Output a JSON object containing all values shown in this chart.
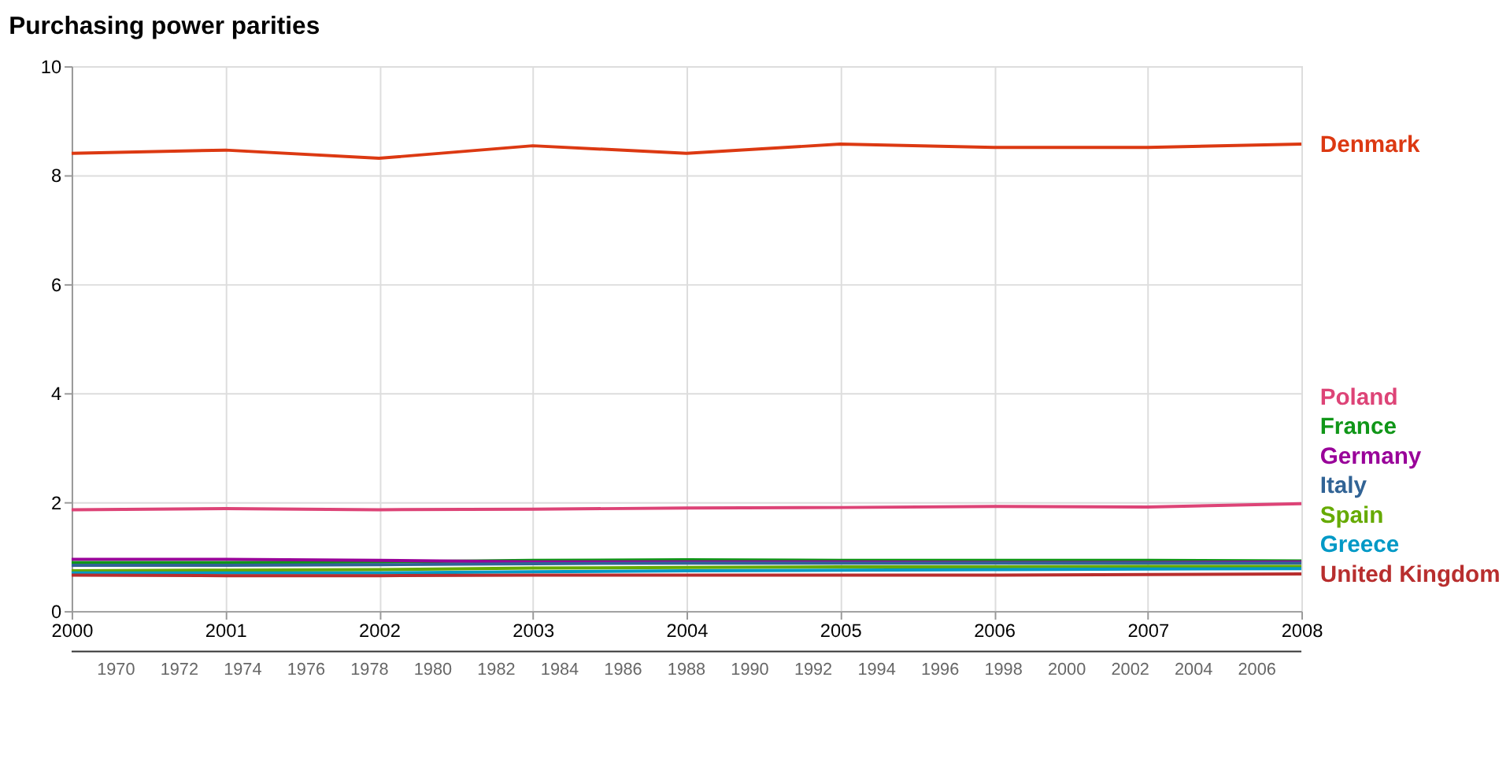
{
  "chart_data": [
    {
      "type": "line",
      "title": "Purchasing power parities",
      "x": [
        2000,
        2001,
        2002,
        2003,
        2004,
        2005,
        2006,
        2007,
        2008
      ],
      "series": [
        {
          "name": "Denmark",
          "color": "#dc3912",
          "values": [
            8.4,
            8.46,
            8.31,
            8.54,
            8.4,
            8.57,
            8.51,
            8.51,
            8.57
          ]
        },
        {
          "name": "Poland",
          "color": "#dd4477",
          "values": [
            1.86,
            1.88,
            1.86,
            1.87,
            1.89,
            1.9,
            1.92,
            1.91,
            1.97
          ]
        },
        {
          "name": "France",
          "color": "#109618",
          "values": [
            0.89,
            0.89,
            0.9,
            0.93,
            0.94,
            0.93,
            0.93,
            0.93,
            0.92
          ]
        },
        {
          "name": "Germany",
          "color": "#990099",
          "values": [
            0.95,
            0.95,
            0.93,
            0.9,
            0.9,
            0.9,
            0.89,
            0.89,
            0.9
          ]
        },
        {
          "name": "Italy",
          "color": "#316395",
          "values": [
            0.84,
            0.84,
            0.85,
            0.87,
            0.88,
            0.88,
            0.88,
            0.88,
            0.88
          ]
        },
        {
          "name": "Spain",
          "color": "#66aa00",
          "values": [
            0.74,
            0.75,
            0.76,
            0.79,
            0.8,
            0.81,
            0.81,
            0.82,
            0.82
          ]
        },
        {
          "name": "Greece",
          "color": "#0099c6",
          "values": [
            0.7,
            0.7,
            0.7,
            0.72,
            0.74,
            0.75,
            0.76,
            0.77,
            0.78
          ]
        },
        {
          "name": "United Kingdom",
          "color": "#b82e2e",
          "values": [
            0.66,
            0.65,
            0.65,
            0.66,
            0.66,
            0.66,
            0.66,
            0.67,
            0.68
          ]
        }
      ],
      "xlim": [
        2000,
        2008
      ],
      "xticks": [
        2000,
        2001,
        2002,
        2003,
        2004,
        2005,
        2006,
        2007,
        2008
      ],
      "ylim": [
        0,
        10
      ],
      "yticks": [
        0,
        2,
        4,
        6,
        8,
        10
      ],
      "grid": true,
      "legend": "right",
      "annotations": [
        "1970",
        "1972",
        "1974",
        "1976",
        "1978",
        "1980",
        "1982",
        "1984",
        "1986",
        "1988",
        "1990",
        "1992",
        "1994",
        "1996",
        "1998",
        "2000",
        "2002",
        "2004",
        "2006"
      ]
    }
  ]
}
